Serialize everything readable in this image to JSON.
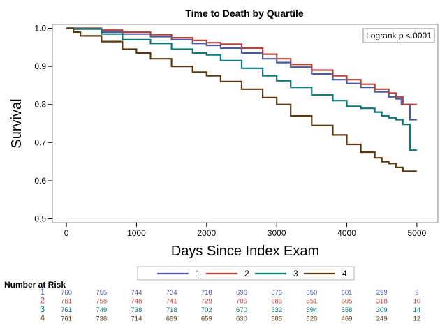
{
  "chart_data": {
    "type": "line",
    "title": "Time to Death by Quartile",
    "xlabel": "Days Since Index Exam",
    "ylabel": "Survival",
    "xlim": [
      -200,
      5300
    ],
    "ylim": [
      0.49,
      1.01
    ],
    "xticks": [
      0,
      1000,
      2000,
      3000,
      4000,
      5000
    ],
    "yticks": [
      0.5,
      0.6,
      0.7,
      0.8,
      0.9,
      1.0
    ],
    "grid": false,
    "legend_placement": "bottom",
    "annotation": "Logrank p <.0001",
    "series": [
      {
        "name": "1",
        "color": "#4a5aa6",
        "x": [
          0,
          100,
          500,
          800,
          1200,
          1500,
          1800,
          2000,
          2200,
          2500,
          2800,
          3000,
          3200,
          3500,
          3800,
          4000,
          4200,
          4400,
          4600,
          4700,
          4780,
          4900,
          5000
        ],
        "y": [
          1.0,
          1.0,
          0.99,
          0.985,
          0.978,
          0.97,
          0.96,
          0.955,
          0.948,
          0.935,
          0.92,
          0.91,
          0.898,
          0.88,
          0.865,
          0.855,
          0.845,
          0.833,
          0.82,
          0.815,
          0.8,
          0.76,
          0.76
        ]
      },
      {
        "name": "2",
        "color": "#b8433a",
        "x": [
          0,
          100,
          500,
          800,
          1200,
          1500,
          1800,
          2000,
          2200,
          2500,
          2800,
          3000,
          3200,
          3500,
          3800,
          4000,
          4200,
          4400,
          4600,
          4700,
          4800,
          5000
        ],
        "y": [
          1.0,
          1.0,
          0.995,
          0.99,
          0.983,
          0.975,
          0.968,
          0.962,
          0.958,
          0.948,
          0.932,
          0.92,
          0.905,
          0.89,
          0.875,
          0.865,
          0.853,
          0.84,
          0.83,
          0.82,
          0.8,
          0.8
        ]
      },
      {
        "name": "3",
        "color": "#0c7a76",
        "x": [
          0,
          100,
          500,
          800,
          1200,
          1500,
          1800,
          2000,
          2200,
          2500,
          2800,
          3000,
          3200,
          3500,
          3800,
          4000,
          4200,
          4400,
          4500,
          4600,
          4700,
          4800,
          4900,
          5000
        ],
        "y": [
          1.0,
          0.998,
          0.985,
          0.97,
          0.96,
          0.945,
          0.935,
          0.93,
          0.915,
          0.895,
          0.875,
          0.862,
          0.845,
          0.825,
          0.81,
          0.795,
          0.79,
          0.78,
          0.77,
          0.765,
          0.76,
          0.748,
          0.68,
          0.68
        ]
      },
      {
        "name": "4",
        "color": "#5c3810",
        "x": [
          0,
          100,
          200,
          500,
          800,
          1000,
          1200,
          1500,
          1800,
          2000,
          2200,
          2500,
          2800,
          3000,
          3200,
          3500,
          3800,
          4000,
          4200,
          4400,
          4500,
          4600,
          4700,
          4800,
          5000
        ],
        "y": [
          1.0,
          0.99,
          0.98,
          0.965,
          0.945,
          0.935,
          0.92,
          0.9,
          0.885,
          0.875,
          0.86,
          0.84,
          0.818,
          0.8,
          0.77,
          0.745,
          0.72,
          0.695,
          0.675,
          0.66,
          0.65,
          0.645,
          0.635,
          0.625,
          0.625
        ]
      }
    ],
    "risk_table": {
      "title": "Number at Risk",
      "x": [
        0,
        500,
        1000,
        1500,
        2000,
        2500,
        3000,
        3500,
        4000,
        4500,
        5000
      ],
      "rows": [
        {
          "group": "1",
          "color": "#4a5aa6",
          "values": [
            "760",
            "755",
            "744",
            "734",
            "718",
            "696",
            "676",
            "650",
            "601",
            "299",
            "9"
          ]
        },
        {
          "group": "2",
          "color": "#b8433a",
          "values": [
            "761",
            "758",
            "748",
            "741",
            "729",
            "705",
            "686",
            "651",
            "605",
            "318",
            "10"
          ]
        },
        {
          "group": "3",
          "color": "#0c7a76",
          "values": [
            "761",
            "749",
            "738",
            "718",
            "702",
            "670",
            "632",
            "594",
            "558",
            "309",
            "14"
          ]
        },
        {
          "group": "4",
          "color": "#5c3810",
          "values": [
            "761",
            "738",
            "714",
            "689",
            "659",
            "630",
            "585",
            "528",
            "469",
            "249",
            "12"
          ]
        }
      ]
    }
  }
}
